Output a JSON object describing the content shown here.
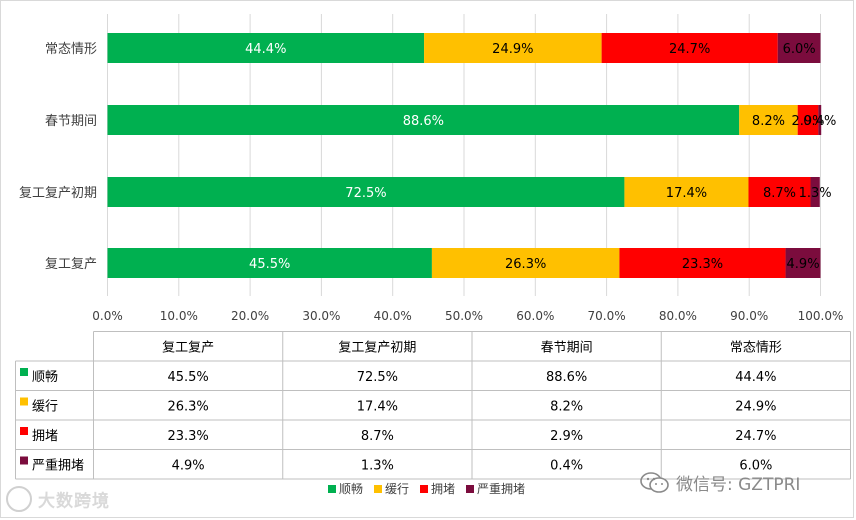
{
  "chart_data": {
    "type": "bar",
    "orientation": "horizontal-stacked-100",
    "categories": [
      "常态情形",
      "春节期间",
      "复工复产初期",
      "复工复产"
    ],
    "series": [
      {
        "name": "顺畅",
        "color": "#00b050",
        "values": [
          44.4,
          88.6,
          72.5,
          45.5
        ],
        "labels": [
          "44.4%",
          "88.6%",
          "72.5%",
          "45.5%"
        ]
      },
      {
        "name": "缓行",
        "color": "#ffc000",
        "values": [
          24.9,
          8.2,
          17.4,
          26.3
        ],
        "labels": [
          "24.9%",
          "8.2%",
          "17.4%",
          "26.3%"
        ]
      },
      {
        "name": "拥堵",
        "color": "#ff0000",
        "values": [
          24.7,
          2.9,
          8.7,
          23.3
        ],
        "labels": [
          "24.7%",
          "2.9%",
          "8.7%",
          "23.3%"
        ]
      },
      {
        "name": "严重拥堵",
        "color": "#7b0c3d",
        "values": [
          6.0,
          0.4,
          1.3,
          4.9
        ],
        "labels": [
          "6.0%",
          "0.4%",
          "1.3%",
          "4.9%"
        ]
      }
    ],
    "xlim": [
      0,
      100
    ],
    "xticks": [
      "0.0%",
      "10.0%",
      "20.0%",
      "30.0%",
      "40.0%",
      "50.0%",
      "60.0%",
      "70.0%",
      "80.0%",
      "90.0%",
      "100.0%"
    ],
    "grid": true,
    "legend_position": "bottom",
    "data_table": {
      "columns": [
        "复工复产",
        "复工复产初期",
        "春节期间",
        "常态情形"
      ],
      "rows": [
        {
          "name": "顺畅",
          "color": "#00b050",
          "cells": [
            "45.5%",
            "72.5%",
            "88.6%",
            "44.4%"
          ]
        },
        {
          "name": "缓行",
          "color": "#ffc000",
          "cells": [
            "26.3%",
            "17.4%",
            "8.2%",
            "24.9%"
          ]
        },
        {
          "name": "拥堵",
          "color": "#ff0000",
          "cells": [
            "23.3%",
            "8.7%",
            "2.9%",
            "24.7%"
          ]
        },
        {
          "name": "严重拥堵",
          "color": "#7b0c3d",
          "cells": [
            "4.9%",
            "1.3%",
            "0.4%",
            "6.0%"
          ]
        }
      ]
    }
  },
  "watermarks": {
    "left_text": "大数跨境",
    "right_text": "微信号: GZTPRI",
    "right_icon": "wechat-icon"
  }
}
